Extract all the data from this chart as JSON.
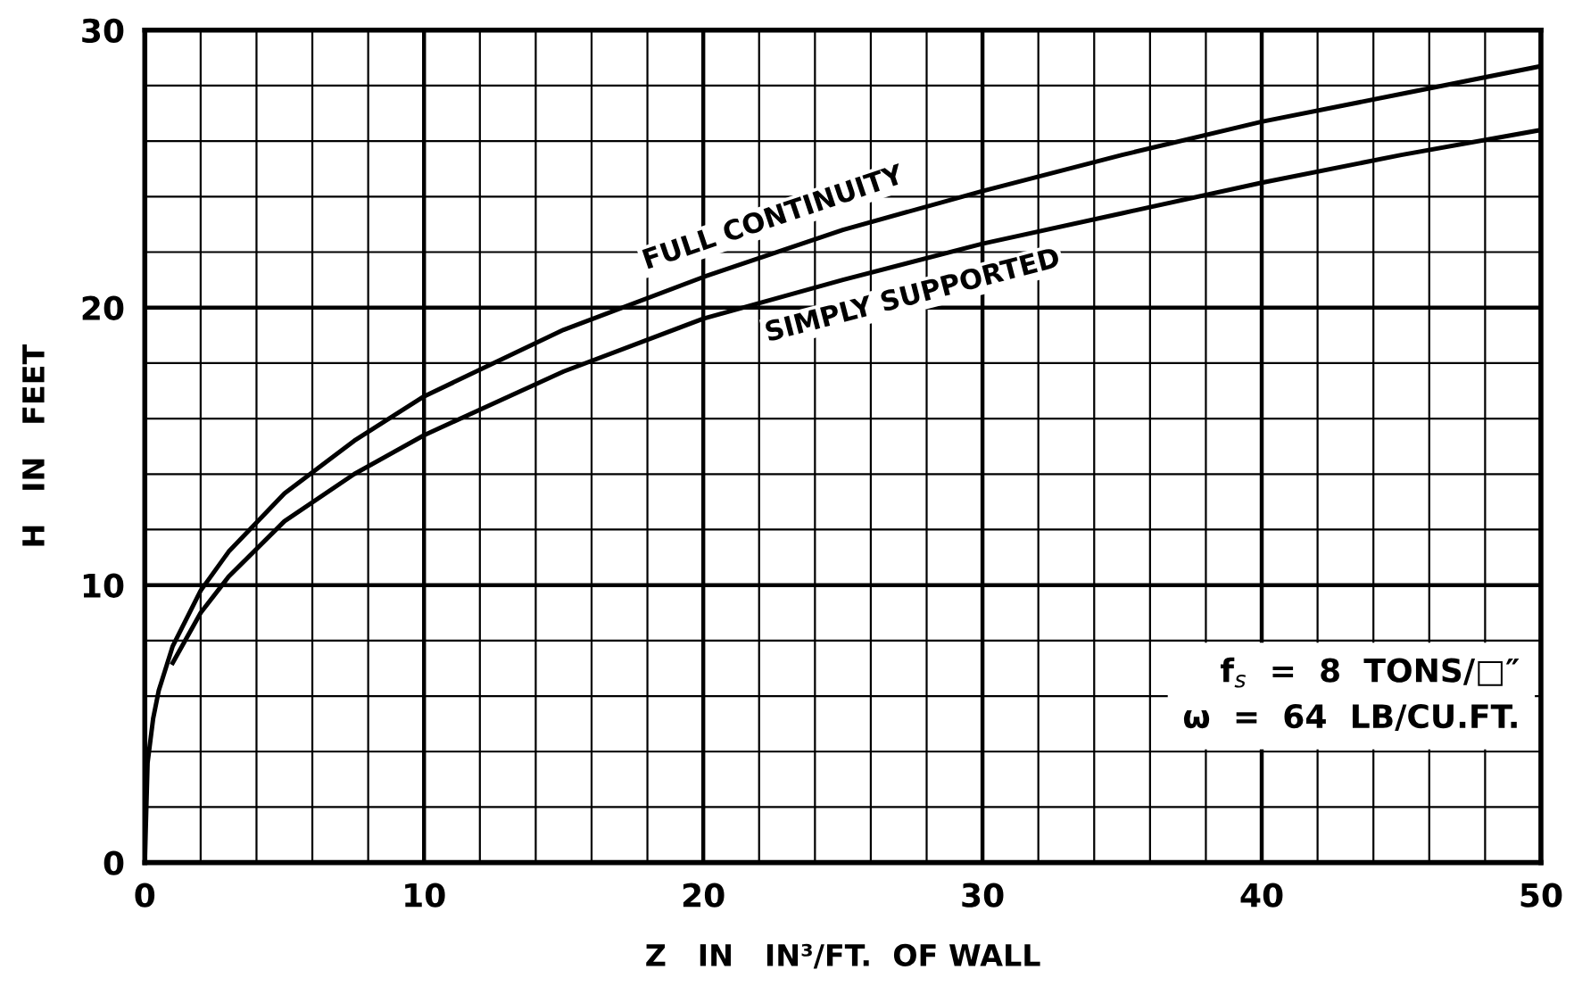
{
  "chart_data": {
    "type": "line",
    "xlabel": "Z   IN   IN³/FT.  OF WALL",
    "ylabel": "H   IN   FEET",
    "xlim": [
      0,
      50
    ],
    "ylim": [
      0,
      30
    ],
    "xticks": [
      0,
      10,
      20,
      30,
      40,
      50
    ],
    "yticks": [
      0,
      10,
      20,
      30
    ],
    "grid": true,
    "line_style": "solid",
    "marker": "none",
    "series": [
      {
        "name": "FULL CONTINUITY",
        "color": "#000000",
        "x": [
          0,
          0.1,
          0.3,
          0.5,
          1,
          2,
          3,
          5,
          7.5,
          10,
          15,
          20,
          25,
          30,
          35,
          40,
          45,
          50
        ],
        "values": [
          0,
          3.6,
          5.2,
          6.2,
          7.8,
          9.8,
          11.2,
          13.3,
          15.2,
          16.8,
          19.2,
          21.1,
          22.8,
          24.2,
          25.5,
          26.7,
          27.7,
          28.7
        ]
      },
      {
        "name": "SIMPLY SUPPORTED",
        "color": "#000000",
        "x": [
          1,
          2,
          3,
          5,
          7.5,
          10,
          15,
          20,
          25,
          30,
          35,
          40,
          45,
          50
        ],
        "values": [
          7.2,
          9.0,
          10.3,
          12.3,
          14.0,
          15.4,
          17.7,
          19.6,
          21.0,
          22.3,
          23.4,
          24.5,
          25.5,
          26.4
        ]
      }
    ],
    "annotations": [
      "f$_{s}$  =  8  TONS/□″",
      "ω  =  64  LB/CU.FT."
    ]
  }
}
